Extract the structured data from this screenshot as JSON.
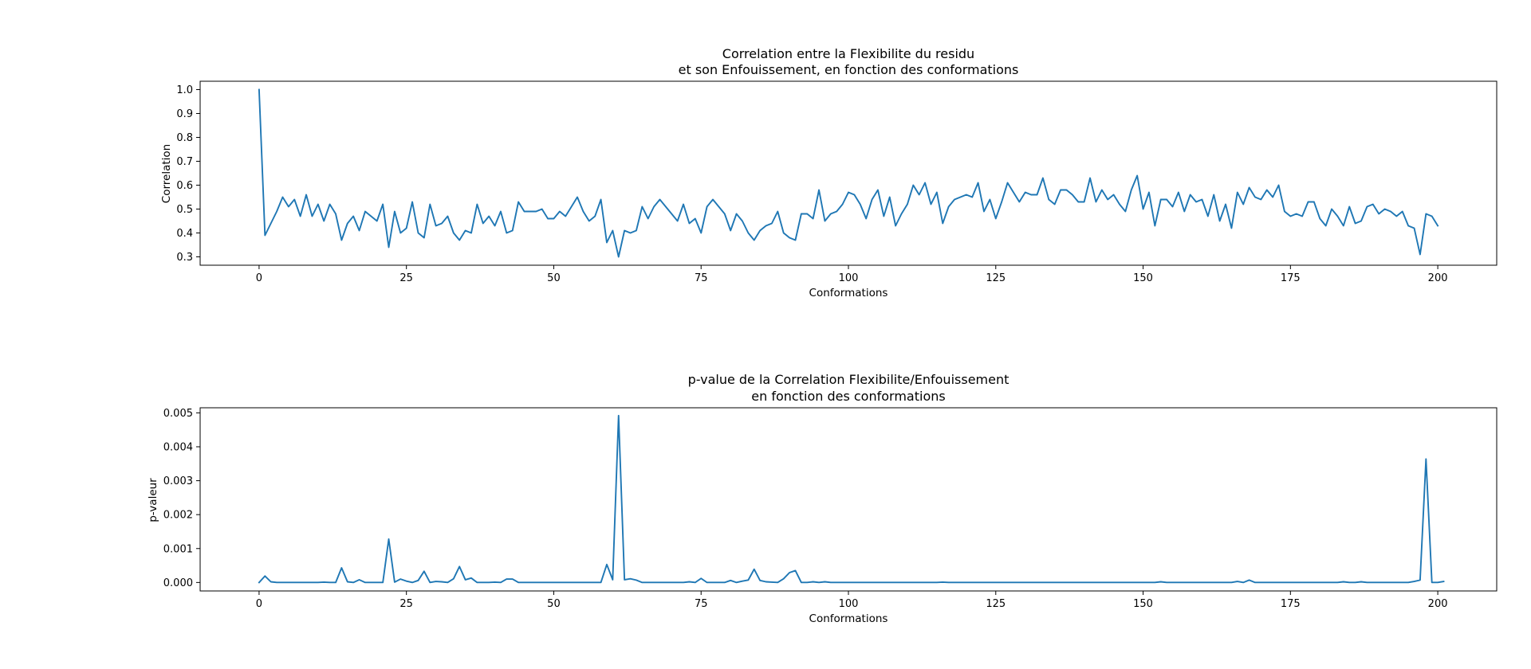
{
  "figure": {
    "background": "#ffffff",
    "line_color": "#1f77b4"
  },
  "chart_data": [
    {
      "type": "line",
      "title_line1": "Correlation entre la Flexibilite du residu",
      "title_line2": "et son Enfouissement, en fonction des conformations",
      "title": "Correlation entre la Flexibilite du residu\net son Enfouissement, en fonction des conformations",
      "xlabel": "Conformations",
      "ylabel": "Correlation",
      "xlim": [
        -10,
        210
      ],
      "ylim": [
        0.265,
        1.035
      ],
      "xticks": [
        0,
        25,
        50,
        75,
        100,
        125,
        150,
        175,
        200
      ],
      "yticks": [
        0.3,
        0.4,
        0.5,
        0.6,
        0.7,
        0.8,
        0.9,
        1.0
      ],
      "xtick_labels": [
        "0",
        "25",
        "50",
        "75",
        "100",
        "125",
        "150",
        "175",
        "200"
      ],
      "ytick_labels": [
        "0.3",
        "0.4",
        "0.5",
        "0.6",
        "0.7",
        "0.8",
        "0.9",
        "1.0"
      ],
      "grid": false,
      "x_start": 0,
      "x_step": 1,
      "series": [
        {
          "color": "#1f77b4",
          "values": [
            1.0,
            0.39,
            0.44,
            0.49,
            0.55,
            0.51,
            0.54,
            0.47,
            0.56,
            0.47,
            0.52,
            0.45,
            0.52,
            0.48,
            0.37,
            0.44,
            0.47,
            0.41,
            0.49,
            0.47,
            0.45,
            0.52,
            0.34,
            0.49,
            0.4,
            0.42,
            0.53,
            0.4,
            0.38,
            0.52,
            0.43,
            0.44,
            0.47,
            0.4,
            0.37,
            0.41,
            0.4,
            0.52,
            0.44,
            0.47,
            0.43,
            0.49,
            0.4,
            0.41,
            0.53,
            0.49,
            0.49,
            0.49,
            0.5,
            0.46,
            0.46,
            0.49,
            0.47,
            0.51,
            0.55,
            0.49,
            0.45,
            0.47,
            0.54,
            0.36,
            0.41,
            0.3,
            0.41,
            0.4,
            0.41,
            0.51,
            0.46,
            0.51,
            0.54,
            0.51,
            0.48,
            0.45,
            0.52,
            0.44,
            0.46,
            0.4,
            0.51,
            0.54,
            0.51,
            0.48,
            0.41,
            0.48,
            0.45,
            0.4,
            0.37,
            0.41,
            0.43,
            0.44,
            0.49,
            0.4,
            0.38,
            0.37,
            0.48,
            0.48,
            0.46,
            0.58,
            0.45,
            0.48,
            0.49,
            0.52,
            0.57,
            0.56,
            0.52,
            0.46,
            0.54,
            0.58,
            0.47,
            0.55,
            0.43,
            0.48,
            0.52,
            0.6,
            0.56,
            0.61,
            0.52,
            0.57,
            0.44,
            0.51,
            0.54,
            0.55,
            0.56,
            0.55,
            0.61,
            0.49,
            0.54,
            0.46,
            0.53,
            0.61,
            0.57,
            0.53,
            0.57,
            0.56,
            0.56,
            0.63,
            0.54,
            0.52,
            0.58,
            0.58,
            0.56,
            0.53,
            0.53,
            0.63,
            0.53,
            0.58,
            0.54,
            0.56,
            0.52,
            0.49,
            0.58,
            0.64,
            0.5,
            0.57,
            0.43,
            0.54,
            0.54,
            0.51,
            0.57,
            0.49,
            0.56,
            0.53,
            0.54,
            0.47,
            0.56,
            0.45,
            0.52,
            0.42,
            0.57,
            0.52,
            0.59,
            0.55,
            0.54,
            0.58,
            0.55,
            0.6,
            0.49,
            0.47,
            0.48,
            0.47,
            0.53,
            0.53,
            0.46,
            0.43,
            0.5,
            0.47,
            0.43,
            0.51,
            0.44,
            0.45,
            0.51,
            0.52,
            0.48,
            0.5,
            0.49,
            0.47,
            0.49,
            0.43,
            0.42,
            0.31,
            0.48,
            0.47,
            0.43
          ]
        }
      ]
    },
    {
      "type": "line",
      "title_line1": "p-value de la Correlation Flexibilite/Enfouissement",
      "title_line2": "en fonction des conformations",
      "title": "p-value de la Correlation Flexibilite/Enfouissement\nen fonction des conformations",
      "xlabel": "Conformations",
      "ylabel": "p-valeur",
      "xlim": [
        -10,
        210
      ],
      "ylim": [
        -0.00025,
        0.00515
      ],
      "xticks": [
        0,
        25,
        50,
        75,
        100,
        125,
        150,
        175,
        200
      ],
      "yticks": [
        0.0,
        0.001,
        0.002,
        0.003,
        0.004,
        0.005
      ],
      "xtick_labels": [
        "0",
        "25",
        "50",
        "75",
        "100",
        "125",
        "150",
        "175",
        "200"
      ],
      "ytick_labels": [
        "0.000",
        "0.001",
        "0.002",
        "0.003",
        "0.004",
        "0.005"
      ],
      "grid": false,
      "x_start": 0,
      "x_step": 1,
      "series": [
        {
          "color": "#1f77b4",
          "values": [
            0.0,
            0.00019,
            2e-05,
            0.0,
            0.0,
            0.0,
            0.0,
            0.0,
            0.0,
            0.0,
            0.0,
            1e-05,
            0.0,
            0.0,
            0.00043,
            2e-05,
            0.0,
            8e-05,
            0.0,
            0.0,
            0.0,
            0.0,
            0.00128,
            1e-05,
            0.0001,
            4e-05,
            0.0,
            6e-05,
            0.00033,
            0.0,
            3e-05,
            2e-05,
            0.0,
            0.00011,
            0.00047,
            8e-05,
            0.00013,
            0.0,
            0.0,
            0.0,
            1e-05,
            0.0,
            0.0001,
            0.0001,
            0.0,
            0.0,
            0.0,
            0.0,
            0.0,
            0.0,
            0.0,
            0.0,
            0.0,
            0.0,
            0.0,
            0.0,
            0.0,
            0.0,
            0.0,
            0.00053,
            8e-05,
            0.00492,
            8e-05,
            0.00011,
            7e-05,
            0.0,
            0.0,
            0.0,
            0.0,
            0.0,
            0.0,
            0.0,
            0.0,
            2e-05,
            0.0,
            0.00012,
            0.0,
            0.0,
            0.0,
            0.0,
            6e-05,
            0.0,
            4e-05,
            7e-05,
            0.00039,
            6e-05,
            2e-05,
            1e-05,
            0.0,
            0.00011,
            0.00029,
            0.00035,
            0.0,
            0.0,
            2e-05,
            0.0,
            2e-05,
            0.0,
            0.0,
            0.0,
            0.0,
            0.0,
            0.0,
            0.0,
            0.0,
            0.0,
            0.0,
            0.0,
            0.0,
            0.0,
            0.0,
            0.0,
            0.0,
            0.0,
            0.0,
            0.0,
            1e-05,
            0.0,
            0.0,
            0.0,
            0.0,
            0.0,
            0.0,
            0.0,
            0.0,
            0.0,
            0.0,
            0.0,
            0.0,
            0.0,
            0.0,
            0.0,
            0.0,
            0.0,
            0.0,
            0.0,
            0.0,
            0.0,
            0.0,
            0.0,
            0.0,
            0.0,
            0.0,
            0.0,
            0.0,
            0.0,
            0.0,
            0.0,
            0.0,
            0.0,
            0.0,
            0.0,
            0.0,
            2e-05,
            0.0,
            0.0,
            0.0,
            0.0,
            0.0,
            0.0,
            0.0,
            0.0,
            0.0,
            0.0,
            0.0,
            0.0,
            3e-05,
            0.0,
            7e-05,
            0.0,
            0.0,
            0.0,
            0.0,
            0.0,
            0.0,
            0.0,
            0.0,
            0.0,
            0.0,
            0.0,
            0.0,
            0.0,
            0.0,
            0.0,
            2e-05,
            0.0,
            0.0,
            2e-05,
            0.0,
            0.0,
            0.0,
            0.0,
            0.0,
            0.0,
            0.0,
            0.0,
            3e-05,
            7e-05,
            0.00364,
            0.0,
            0.0,
            3e-05
          ]
        }
      ]
    }
  ]
}
